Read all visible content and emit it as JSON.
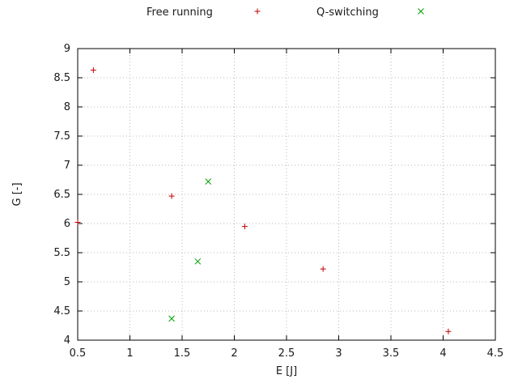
{
  "chart_data": {
    "type": "scatter",
    "title": "",
    "xlabel": "E [J]",
    "ylabel": "G [-]",
    "xlim": [
      0.5,
      4.5
    ],
    "ylim": [
      4,
      9
    ],
    "xticks": [
      0.5,
      1,
      1.5,
      2,
      2.5,
      3,
      3.5,
      4,
      4.5
    ],
    "yticks": [
      4,
      4.5,
      5,
      5.5,
      6,
      6.5,
      7,
      7.5,
      8,
      8.5,
      9
    ],
    "grid": true,
    "legend_position": "top-center",
    "series": [
      {
        "name": "Free running",
        "marker": "plus",
        "color": "#c00000",
        "points": [
          [
            0.5,
            6.02
          ],
          [
            0.65,
            8.63
          ],
          [
            1.4,
            6.47
          ],
          [
            2.1,
            5.95
          ],
          [
            2.85,
            5.22
          ],
          [
            4.05,
            4.15
          ]
        ]
      },
      {
        "name": "Q-switching",
        "marker": "x",
        "color": "#00a000",
        "points": [
          [
            1.75,
            6.72
          ],
          [
            1.65,
            5.35
          ],
          [
            1.4,
            4.37
          ]
        ]
      }
    ]
  }
}
